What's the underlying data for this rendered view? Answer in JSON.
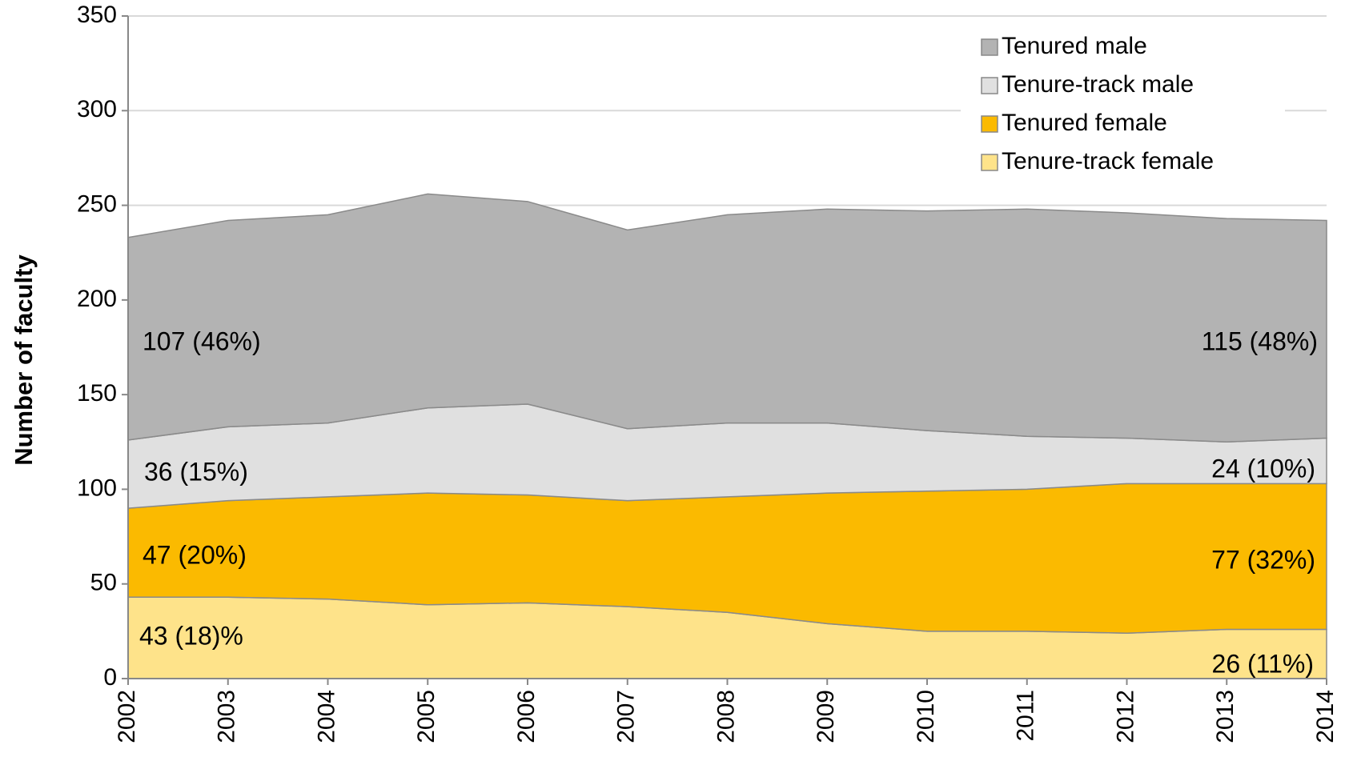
{
  "chart_data": {
    "type": "stacked-area",
    "y_label": "Number of faculty",
    "categories": [
      "2002",
      "2003",
      "2004",
      "2005",
      "2006",
      "2007",
      "2008",
      "2009",
      "2010",
      "2011",
      "2012",
      "2013",
      "2014"
    ],
    "series": [
      {
        "name": "Tenured male",
        "color": "#b3b3b3",
        "values": [
          107,
          109,
          110,
          113,
          107,
          105,
          110,
          113,
          116,
          120,
          119,
          118,
          115
        ]
      },
      {
        "name": "Tenure-track male",
        "color": "#e0e0e0",
        "values": [
          36,
          39,
          39,
          45,
          48,
          38,
          39,
          37,
          32,
          28,
          24,
          22,
          24
        ]
      },
      {
        "name": "Tenured female",
        "color": "#fbba00",
        "values": [
          47,
          51,
          54,
          59,
          57,
          56,
          61,
          69,
          74,
          75,
          79,
          77,
          77
        ]
      },
      {
        "name": "Tenure-track female",
        "color": "#fee38a",
        "values": [
          43,
          43,
          42,
          39,
          40,
          38,
          35,
          29,
          25,
          25,
          24,
          26,
          26
        ]
      }
    ],
    "annotations": [
      "107 (46%)",
      "36 (15%)",
      "47 (20%)",
      "43 (18)%",
      "115 (48%)",
      "24 (10%)",
      "77 (32%)",
      "26 (11%)"
    ],
    "ylim": [
      0,
      350
    ],
    "yticks": [
      0,
      50,
      100,
      150,
      200,
      250,
      300,
      350
    ],
    "grid": true,
    "legend": "top-right"
  }
}
